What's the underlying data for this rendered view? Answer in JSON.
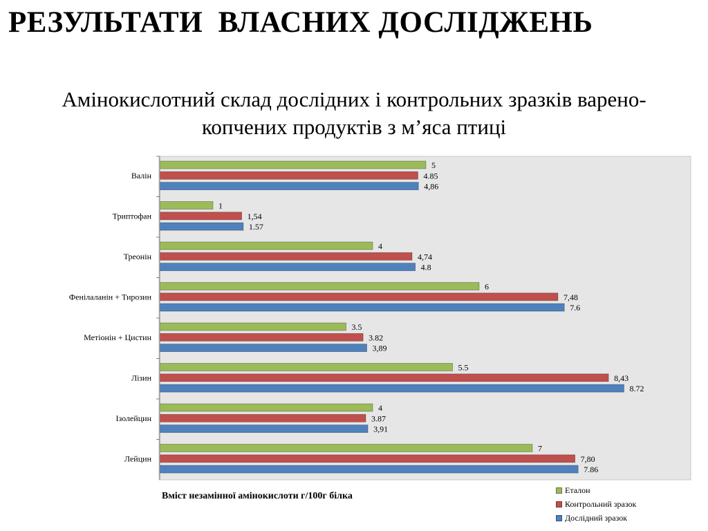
{
  "slide": {
    "heading": "РЕЗУЛЬТАТИ  ВЛАСНИХ ДОСЛІДЖЕНЬ",
    "subtitle_line1": "Амінокислотний склад дослідних і контрольних зразків варено-",
    "subtitle_line2": "копчених продуктів з м’яса птиці"
  },
  "chart_data": {
    "type": "bar",
    "orientation": "horizontal",
    "title": "",
    "xlabel": "Вміст незамінної амінокислоти г/100г білка",
    "ylabel": "",
    "xlim": [
      0,
      10
    ],
    "grid": false,
    "legend_position": "bottom-right",
    "categories": [
      "Валін",
      "Триптофан",
      "Треонін",
      "Фенілаланін + Тирозин",
      "Метіонін + Цистин",
      "Лізин",
      "Ізолейцин",
      "Лейцин"
    ],
    "series": [
      {
        "name": "Еталон",
        "color": "#9bbb59",
        "values": [
          5,
          1,
          4,
          6,
          3.5,
          5.5,
          4,
          7
        ],
        "labels": [
          "5",
          "1",
          "4",
          "6",
          "3.5",
          "5.5",
          "4",
          "7"
        ]
      },
      {
        "name": "Контрольний зразок",
        "color": "#c0504d",
        "values": [
          4.85,
          1.54,
          4.74,
          7.48,
          3.82,
          8.43,
          3.87,
          7.8
        ],
        "labels": [
          "4.85",
          "1,54",
          "4,74",
          "7,48",
          "3.82",
          "8,43",
          "3.87",
          "7,80"
        ]
      },
      {
        "name": "Дослідний зразок",
        "color": "#4f81bd",
        "values": [
          4.86,
          1.57,
          4.8,
          7.6,
          3.89,
          8.72,
          3.91,
          7.86
        ],
        "labels": [
          "4,86",
          "1.57",
          "4.8",
          "7.6",
          "3,89",
          "8.72",
          "3,91",
          "7.86"
        ]
      }
    ],
    "plot_background": "#e6e6e6"
  }
}
